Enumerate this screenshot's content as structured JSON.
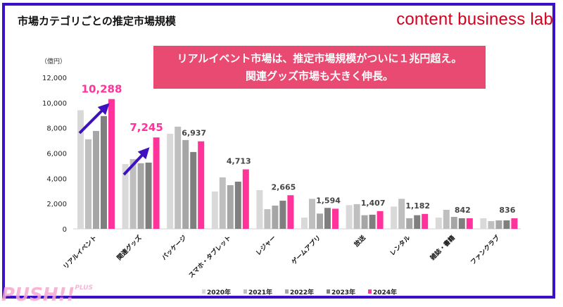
{
  "title": "市場カテゴリごとの推定市場規模",
  "logo": "content business lab",
  "callout": {
    "line1": "リアルイベント市場は、推定市場規模がついに１兆円超え。",
    "line2": "関連グッズ市場も大きく伸長。"
  },
  "watermark": {
    "text": "PUSH!!",
    "sub": "PLUS"
  },
  "colors": {
    "2020年": "#d9d9d9",
    "2021年": "#bfbfbf",
    "2022年": "#a6a6a6",
    "2023年": "#7f7f7f",
    "2024年": "#ff3399",
    "arrow": "#3f10c0",
    "frame": "#3a10c8",
    "callout": "#e84a72"
  },
  "chart_data": {
    "type": "bar",
    "unit_label": "（億円）",
    "ylim": [
      0,
      12000
    ],
    "yticks": [
      "0",
      "2,000",
      "4,000",
      "6,000",
      "8,000",
      "10,000",
      "12,000"
    ],
    "categories": [
      "リアルイベント",
      "関連グッズ",
      "パッケージ",
      "スマホ・タブレット",
      "レジャー",
      "ゲームアプリ",
      "放送",
      "レンタル",
      "雑誌・書籍",
      "ファンクラブ"
    ],
    "series": [
      {
        "name": "2020年",
        "values": [
          9400,
          5140,
          7540,
          2960,
          3070,
          890,
          1880,
          1770,
          890,
          840
        ]
      },
      {
        "name": "2021年",
        "values": [
          7100,
          5530,
          8100,
          4080,
          1560,
          2380,
          1960,
          2380,
          1510,
          610
        ]
      },
      {
        "name": "2022年",
        "values": [
          7760,
          5200,
          7040,
          3460,
          1840,
          1210,
          1080,
          840,
          950,
          670
        ]
      },
      {
        "name": "2023年",
        "values": [
          8940,
          5250,
          6090,
          3740,
          2230,
          1660,
          1120,
          1080,
          840,
          670
        ]
      },
      {
        "name": "2024年",
        "values": [
          10288,
          7245,
          6937,
          4713,
          2665,
          1594,
          1407,
          1182,
          842,
          836
        ]
      }
    ],
    "data_labels": [
      "10,288",
      "7,245",
      "6,937",
      "4,713",
      "2,665",
      "1,594",
      "1,407",
      "1,182",
      "842",
      "836"
    ],
    "highlighted_labels": [
      0,
      1
    ],
    "legend_position": "bottom",
    "grid": false
  }
}
